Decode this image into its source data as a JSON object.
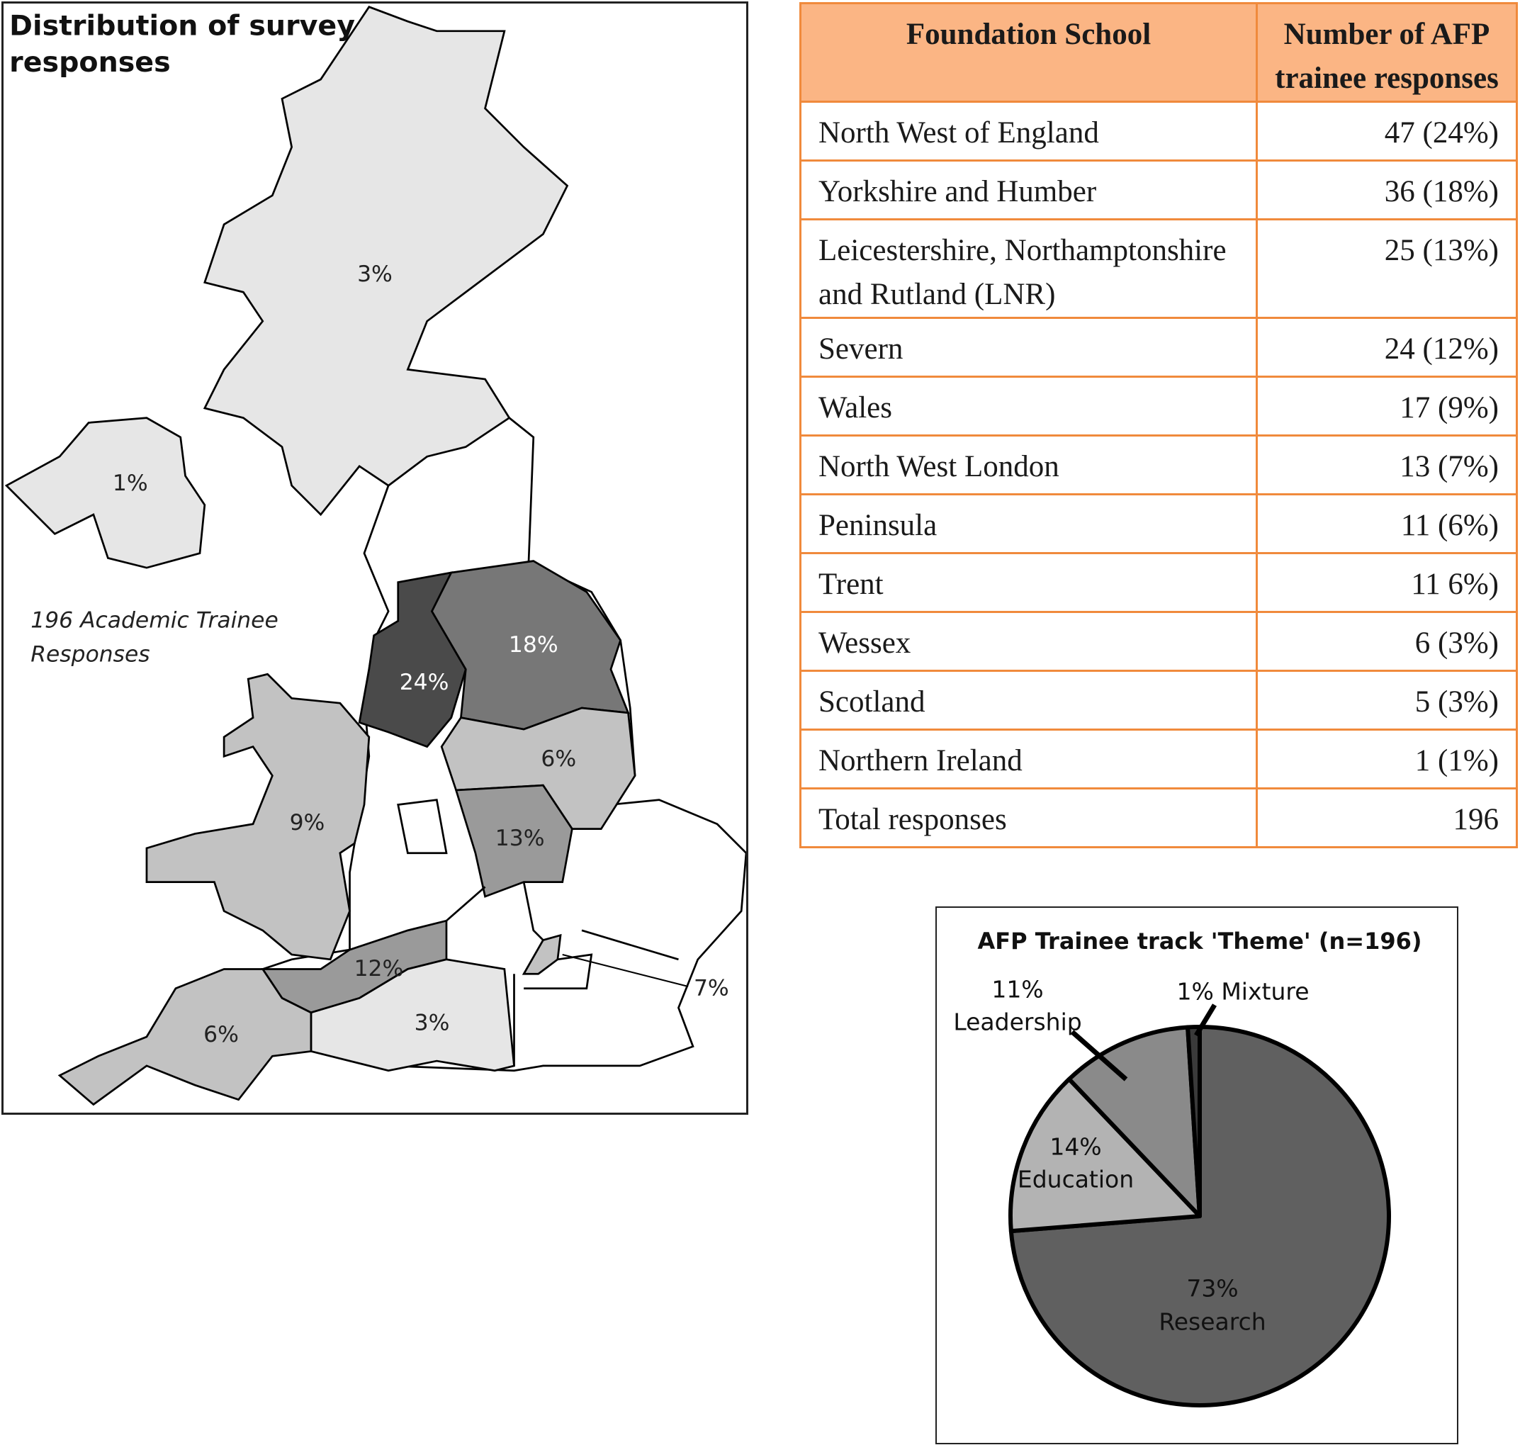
{
  "map": {
    "title_line1": "Distribution of survey",
    "title_line2": "responses",
    "note_line1": "196 Academic Trainee",
    "note_line2": "Responses",
    "regions": {
      "scotland": "3%",
      "northern_ireland": "1%",
      "yorkshire": "18%",
      "north_west": "24%",
      "trent": "6%",
      "wales": "9%",
      "lnr": "13%",
      "severn": "12%",
      "north_west_london": "7%",
      "wessex": "3%",
      "peninsula": "6%"
    },
    "colors": {
      "darkest": "#4a4a4a",
      "dark": "#777777",
      "mid": "#9a9a9a",
      "light": "#c2c2c2",
      "lightest": "#e6e6e6"
    }
  },
  "table": {
    "headers": [
      "Foundation School",
      "Number of AFP trainee responses"
    ],
    "rows": [
      {
        "school": "North West of England",
        "count": "47 (24%)"
      },
      {
        "school": "Yorkshire and Humber",
        "count": "36 (18%)"
      },
      {
        "school": "Leicestershire, Northamptonshire and Rutland (LNR)",
        "count": "25 (13%)"
      },
      {
        "school": "Severn",
        "count": "24 (12%)"
      },
      {
        "school": "Wales",
        "count": "17 (9%)"
      },
      {
        "school": "North West London",
        "count": "13 (7%)"
      },
      {
        "school": "Peninsula",
        "count": "11 (6%)"
      },
      {
        "school": "Trent",
        "count": "11 6%)"
      },
      {
        "school": "Wessex",
        "count": "6 (3%)"
      },
      {
        "school": "Scotland",
        "count": "5 (3%)"
      },
      {
        "school": "Northern Ireland",
        "count": "1 (1%)"
      },
      {
        "school": "Total responses",
        "count": "196"
      }
    ],
    "colors": {
      "header_bg": "#fbb584",
      "border": "#f08a3c"
    }
  },
  "chart_data": {
    "type": "pie",
    "title": "AFP Trainee track 'Theme' (n=196)",
    "slices": [
      {
        "label": "Research",
        "value": 73,
        "value_label": "73%",
        "color": "#606060"
      },
      {
        "label": "Education",
        "value": 14,
        "value_label": "14%",
        "color": "#b3b3b3"
      },
      {
        "label": "Leadership",
        "value": 11,
        "value_label": "11%",
        "color": "#8a8a8a"
      },
      {
        "label": "Mixture",
        "value": 1,
        "value_label": "1% Mixture",
        "color": "#3a3a3a"
      }
    ],
    "start_angle": "12 o'clock",
    "direction": "clockwise",
    "legend": "none"
  }
}
